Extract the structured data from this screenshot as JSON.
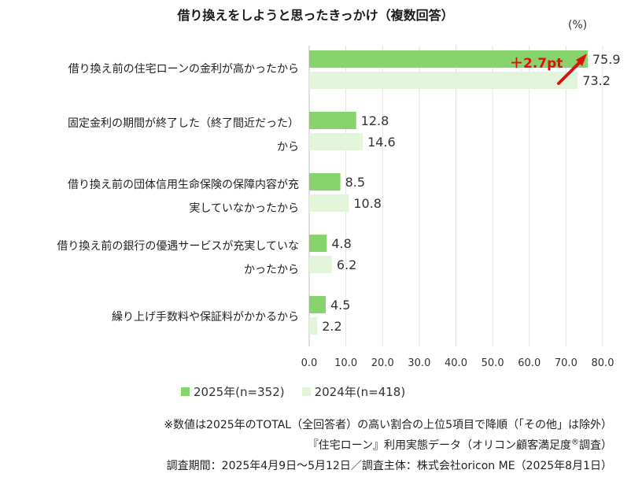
{
  "title": "借り換えをしようと思ったきっかけ（複数回答）",
  "unit": "(%)",
  "chart_data": {
    "type": "bar",
    "orientation": "horizontal",
    "categories": [
      [
        "借り換え前の住宅ローンの金利が高かったから"
      ],
      [
        "固定金利の期間が終了した（終了間近だった）",
        "から"
      ],
      [
        "借り換え前の団体信用生命保険の保障内容が充",
        "実していなかったから"
      ],
      [
        "借り換え前の銀行の優遇サービスが充実していな",
        "かったから"
      ],
      [
        "繰り上げ手数料や保証料がかかるから"
      ]
    ],
    "series": [
      {
        "name": "2025年(n=352)",
        "color": "#86d46b",
        "values": [
          75.9,
          12.8,
          8.5,
          4.8,
          4.5
        ]
      },
      {
        "name": "2024年(n=418)",
        "color": "#e2f5da",
        "values": [
          73.2,
          14.6,
          10.8,
          6.2,
          2.2
        ]
      }
    ],
    "xlim": [
      0,
      80
    ],
    "xticks": [
      "0.0",
      "10.0",
      "20.0",
      "30.0",
      "40.0",
      "50.0",
      "60.0",
      "70.0",
      "80.0"
    ],
    "grid": true,
    "legend_position": "bottom",
    "annotation": {
      "text": "＋2.7pt",
      "color": "#e01010"
    }
  },
  "notes": [
    "※数値は2025年のTOTAL（全回答者）の高い割合の上位5項目で降順（「その他」は除外）",
    "『住宅ローン』利用実態データ（オリコン顧客満足度®調査）",
    "調査期間：2025年4月9日～5月12日／調査主体：株式会社oricon ME（2025年8月1日）"
  ]
}
